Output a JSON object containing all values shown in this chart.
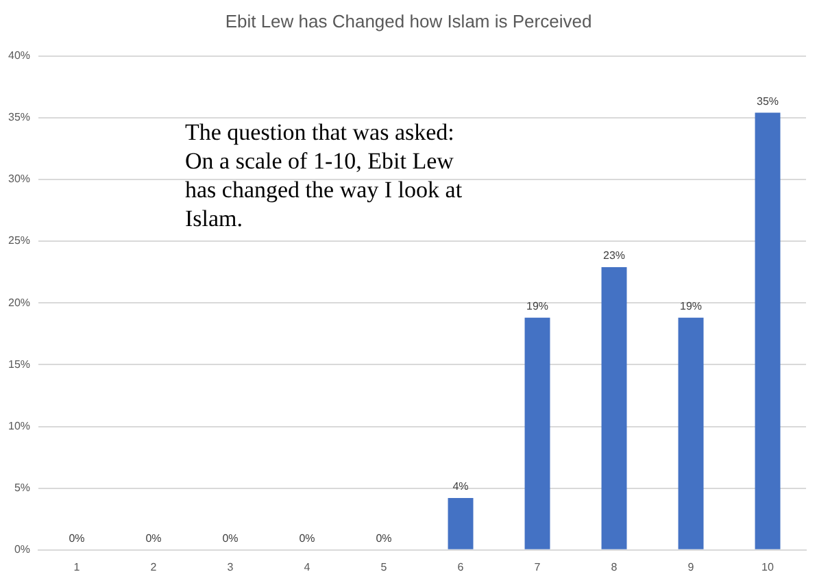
{
  "chart_data": {
    "type": "bar",
    "title": "Ebit Lew has Changed how Islam is Perceived",
    "categories": [
      "1",
      "2",
      "3",
      "4",
      "5",
      "6",
      "7",
      "8",
      "9",
      "10"
    ],
    "values": [
      0,
      0,
      0,
      0,
      0,
      4.2,
      18.8,
      22.9,
      18.8,
      35.4
    ],
    "value_labels": [
      "0%",
      "0%",
      "0%",
      "0%",
      "0%",
      "4%",
      "19%",
      "23%",
      "19%",
      "35%"
    ],
    "color": "#4472c4",
    "ylim": [
      0,
      40
    ],
    "yticks": [
      {
        "value": 0,
        "label": "0%"
      },
      {
        "value": 5,
        "label": "5%"
      },
      {
        "value": 10,
        "label": "10%"
      },
      {
        "value": 15,
        "label": "15%"
      },
      {
        "value": 20,
        "label": "20%"
      },
      {
        "value": 25,
        "label": "25%"
      },
      {
        "value": 30,
        "label": "30%"
      },
      {
        "value": 35,
        "label": "35%"
      },
      {
        "value": 40,
        "label": "40%"
      }
    ],
    "grid": "y",
    "annotations": [
      "The question that was asked: On a scale of 1-10, Ebit Lew has changed the way I look at Islam."
    ]
  }
}
